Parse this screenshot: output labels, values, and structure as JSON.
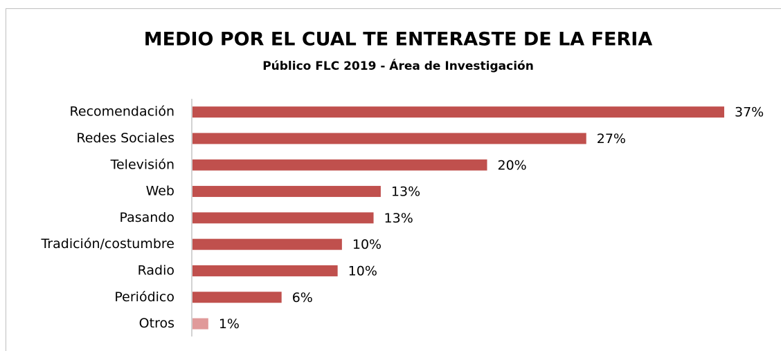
{
  "chart_data": {
    "type": "bar",
    "orientation": "horizontal",
    "title": "MEDIO POR EL CUAL TE ENTERASTE DE LA FERIA",
    "subtitle": "Público FLC 2019 - Área de Investigación",
    "categories": [
      "Recomendación",
      "Redes Sociales",
      "Televisión",
      "Web",
      "Pasando",
      "Tradición/costumbre",
      "Radio",
      "Periódico",
      "Otros"
    ],
    "values": [
      37,
      27.4,
      20.5,
      13.1,
      12.6,
      10.4,
      10.1,
      6.2,
      1.1
    ],
    "value_labels": [
      "37%",
      "27%",
      "20%",
      "13%",
      "13%",
      "10%",
      "10%",
      "6%",
      "1%"
    ],
    "colors": [
      "#c0504d",
      "#c0504d",
      "#c0504d",
      "#c0504d",
      "#c0504d",
      "#c0504d",
      "#c0504d",
      "#c0504d",
      "#e09a9a"
    ]
  }
}
